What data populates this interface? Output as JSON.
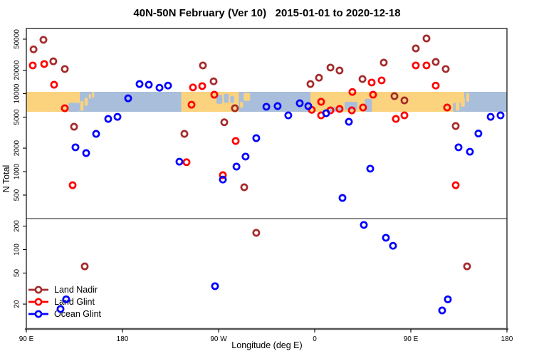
{
  "title": "40N-50N February (Ver 10)   2015-01-01 to 2020-12-18",
  "colors": {
    "land_nadir": "#A52A2A",
    "land_glint": "#FF0000",
    "ocean_glint": "#0000FF",
    "map_land": "#FBD37E",
    "map_ocean": "#A9BEDB",
    "frame": "#1a1a1a",
    "axis_line": "#555555",
    "threshold_line": "#444444"
  },
  "legend": {
    "items": [
      {
        "label": "Land Nadir",
        "series": "land_nadir"
      },
      {
        "label": "Land Glint",
        "series": "land_glint"
      },
      {
        "label": "Ocean Glint",
        "series": "ocean_glint"
      }
    ]
  },
  "chart_data": {
    "type": "scatter",
    "title": "40N-50N February (Ver 10)   2015-01-01 to 2020-12-18",
    "xlabel": "Longitude (deg E)",
    "ylabel": "N Total",
    "y_scale": "log",
    "ylim": [
      9.6,
      68500
    ],
    "x_range_deg_east_extended": [
      90,
      540
    ],
    "x_ticks": [
      {
        "lon": 90,
        "label": "90 E"
      },
      {
        "lon": 180,
        "label": "180"
      },
      {
        "lon": 270,
        "label": "90 W"
      },
      {
        "lon": 360,
        "label": "0"
      },
      {
        "lon": 450,
        "label": "90 E"
      },
      {
        "lon": 540,
        "label": "180"
      }
    ],
    "y_ticks": [
      {
        "n": 50000,
        "label": "50000"
      },
      {
        "n": 20000,
        "label": "20000"
      },
      {
        "n": 10000,
        "label": "10000"
      },
      {
        "n": 5000,
        "label": "5000"
      },
      {
        "n": 2000,
        "label": "2000"
      },
      {
        "n": 1000,
        "label": "1000"
      },
      {
        "n": 500,
        "label": "500"
      },
      {
        "n": 200,
        "label": "200"
      },
      {
        "n": 100,
        "label": "100"
      },
      {
        "n": 50,
        "label": "50"
      },
      {
        "n": 20,
        "label": "20"
      }
    ],
    "threshold_line_n": 250,
    "map_band": {
      "n_top": 10550,
      "n_bottom": 5850,
      "segments": [
        {
          "type": "land",
          "from": 90,
          "to": 140
        },
        {
          "type": "ocean",
          "from": 140,
          "to": 235
        },
        {
          "type": "land",
          "from": 235,
          "to": 289
        },
        {
          "type": "ocean",
          "from": 289,
          "to": 356
        },
        {
          "type": "land",
          "from": 356,
          "to": 500
        },
        {
          "type": "ocean",
          "from": 500,
          "to": 540
        }
      ],
      "ocean_patches": [
        {
          "name": "sea-of-japan",
          "from": 129.5,
          "to": 140,
          "top": 0.55,
          "bottom": 1
        },
        {
          "name": "great-lakes-west",
          "from": 268,
          "to": 273.5,
          "top": 0.15,
          "bottom": 0.6
        },
        {
          "name": "great-lakes-east",
          "from": 275,
          "to": 279.5,
          "top": 0.1,
          "bottom": 0.55
        },
        {
          "name": "gulf-st-lawrence",
          "from": 281,
          "to": 284.5,
          "top": 0.2,
          "bottom": 0.55
        },
        {
          "name": "mediterranean",
          "from": 374,
          "to": 380,
          "top": 0.75,
          "bottom": 1
        },
        {
          "name": "adriatic",
          "from": 382,
          "to": 386.5,
          "top": 0.8,
          "bottom": 1
        },
        {
          "name": "black-sea",
          "from": 388,
          "to": 400,
          "top": 0.5,
          "bottom": 0.9
        },
        {
          "name": "caspian-sea",
          "from": 407,
          "to": 413.5,
          "top": 0.35,
          "bottom": 1
        },
        {
          "name": "sea-of-japan-2",
          "from": 489.5,
          "to": 500,
          "top": 0.55,
          "bottom": 1
        }
      ],
      "land_patches": [
        {
          "name": "japan",
          "from": 140.5,
          "to": 143.5,
          "top": 0.45,
          "bottom": 0.95
        },
        {
          "name": "hokkaido",
          "from": 144.5,
          "to": 147.5,
          "top": 0.3,
          "bottom": 0.7
        },
        {
          "name": "kuril-islands",
          "from": 148.5,
          "to": 150.5,
          "top": 0.1,
          "bottom": 0.35
        },
        {
          "name": "sakhalin",
          "from": 151.5,
          "to": 153.5,
          "top": 0,
          "bottom": 0.3
        },
        {
          "name": "nova-scotia",
          "from": 290,
          "to": 293,
          "top": 0.5,
          "bottom": 0.8
        },
        {
          "name": "newfoundland",
          "from": 293.5,
          "to": 299.5,
          "top": 0.05,
          "bottom": 0.45
        },
        {
          "name": "japan-2",
          "from": 492,
          "to": 495.5,
          "top": 0.5,
          "bottom": 0.95
        },
        {
          "name": "hokkaido-2",
          "from": 497,
          "to": 500.5,
          "top": 0.3,
          "bottom": 0.75
        },
        {
          "name": "sakhalin-2",
          "from": 502,
          "to": 504.5,
          "top": 0.05,
          "bottom": 0.5
        }
      ]
    },
    "series": [
      {
        "name": "Land Nadir",
        "color_key": "land_nadir",
        "points": [
          [
            106,
            49000
          ],
          [
            96.7,
            37000
          ],
          [
            115.3,
            26000
          ],
          [
            126,
            20700
          ],
          [
            134.7,
            3760
          ],
          [
            238,
            3050
          ],
          [
            255.3,
            23000
          ],
          [
            265.3,
            14400
          ],
          [
            285.3,
            6500
          ],
          [
            275.3,
            4300
          ],
          [
            356,
            13300
          ],
          [
            364,
            16000
          ],
          [
            374.7,
            21600
          ],
          [
            383.3,
            19800
          ],
          [
            404.7,
            15400
          ],
          [
            434.7,
            9300
          ],
          [
            444,
            8200
          ],
          [
            464.7,
            51000
          ],
          [
            454.7,
            38000
          ],
          [
            424.7,
            25000
          ],
          [
            473.3,
            25500
          ],
          [
            482.7,
            20700
          ],
          [
            492,
            3840
          ],
          [
            294,
            630
          ],
          [
            305.3,
            164
          ],
          [
            144.7,
            61
          ],
          [
            502.7,
            61
          ]
        ]
      },
      {
        "name": "Land Glint",
        "color_key": "land_glint",
        "points": [
          [
            96,
            23000
          ],
          [
            106.7,
            24000
          ],
          [
            116,
            13000
          ],
          [
            126,
            6500
          ],
          [
            133.3,
            670
          ],
          [
            240,
            1320
          ],
          [
            246,
            12000
          ],
          [
            254.7,
            12500
          ],
          [
            244.7,
            7200
          ],
          [
            266,
            9700
          ],
          [
            286,
            2470
          ],
          [
            274,
            900
          ],
          [
            357.3,
            6200
          ],
          [
            366,
            7850
          ],
          [
            366,
            5270
          ],
          [
            374.7,
            6100
          ],
          [
            383.3,
            6370
          ],
          [
            394.7,
            6100
          ],
          [
            405.3,
            6640
          ],
          [
            454.7,
            23000
          ],
          [
            464.7,
            23000
          ],
          [
            413.3,
            13900
          ],
          [
            395.3,
            10500
          ],
          [
            414.7,
            9700
          ],
          [
            422.7,
            14800
          ],
          [
            473.3,
            12700
          ],
          [
            484,
            6640
          ],
          [
            444,
            5270
          ],
          [
            436,
            4740
          ],
          [
            492,
            670
          ]
        ]
      },
      {
        "name": "Ocean Glint",
        "color_key": "ocean_glint",
        "points": [
          [
            136,
            2050
          ],
          [
            146,
            1730
          ],
          [
            155.3,
            3050
          ],
          [
            166.7,
            4740
          ],
          [
            175.3,
            5040
          ],
          [
            185.3,
            8700
          ],
          [
            196,
            13300
          ],
          [
            204.7,
            13000
          ],
          [
            214.7,
            11900
          ],
          [
            222.7,
            12700
          ],
          [
            233.3,
            1340
          ],
          [
            305.3,
            2690
          ],
          [
            295.3,
            1560
          ],
          [
            286.7,
            1160
          ],
          [
            314.7,
            6800
          ],
          [
            325.3,
            6930
          ],
          [
            335.3,
            5270
          ],
          [
            346,
            7530
          ],
          [
            354,
            6930
          ],
          [
            370.7,
            5610
          ],
          [
            392,
            4360
          ],
          [
            524.7,
            5040
          ],
          [
            534,
            5270
          ],
          [
            513.3,
            3080
          ],
          [
            494.7,
            2050
          ],
          [
            505.3,
            1800
          ],
          [
            412,
            1090
          ],
          [
            274,
            790
          ],
          [
            386,
            460
          ],
          [
            266.7,
            34
          ],
          [
            406,
            207
          ],
          [
            426.7,
            142
          ],
          [
            433.3,
            112
          ],
          [
            484.7,
            23
          ],
          [
            479.3,
            16.6
          ],
          [
            127.3,
            23
          ],
          [
            122,
            17.3
          ]
        ]
      }
    ]
  }
}
